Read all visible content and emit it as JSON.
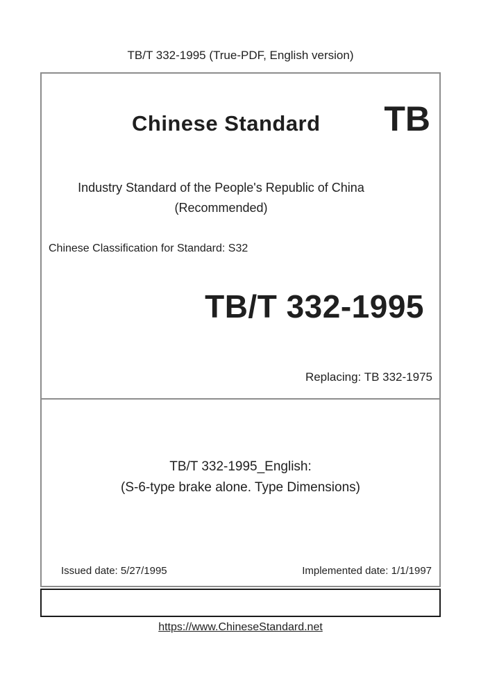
{
  "header": {
    "title": "TB/T 332-1995 (True-PDF, English version)"
  },
  "cover": {
    "brand_title": "Chinese Standard",
    "brand_code": "TB",
    "org_line1": "Industry Standard of the People's Republic of China",
    "org_line2": "(Recommended)",
    "classification": "Chinese Classification for Standard: S32",
    "standard_number": "TB/T 332-1995",
    "replacing": "Replacing: TB 332-1975",
    "english_title_line1": "TB/T 332-1995_English:",
    "english_title_line2": "(S-6-type brake alone. Type Dimensions)",
    "issued_date": "Issued date: 5/27/1995",
    "implemented_date": "Implemented date: 1/1/1997"
  },
  "footer": {
    "url": "https://www.ChineseStandard.net"
  },
  "colors": {
    "box_border_gray": "#8c8c8c",
    "footer_box_border_black": "#1a1a1a",
    "text": "#1f1f1f"
  }
}
